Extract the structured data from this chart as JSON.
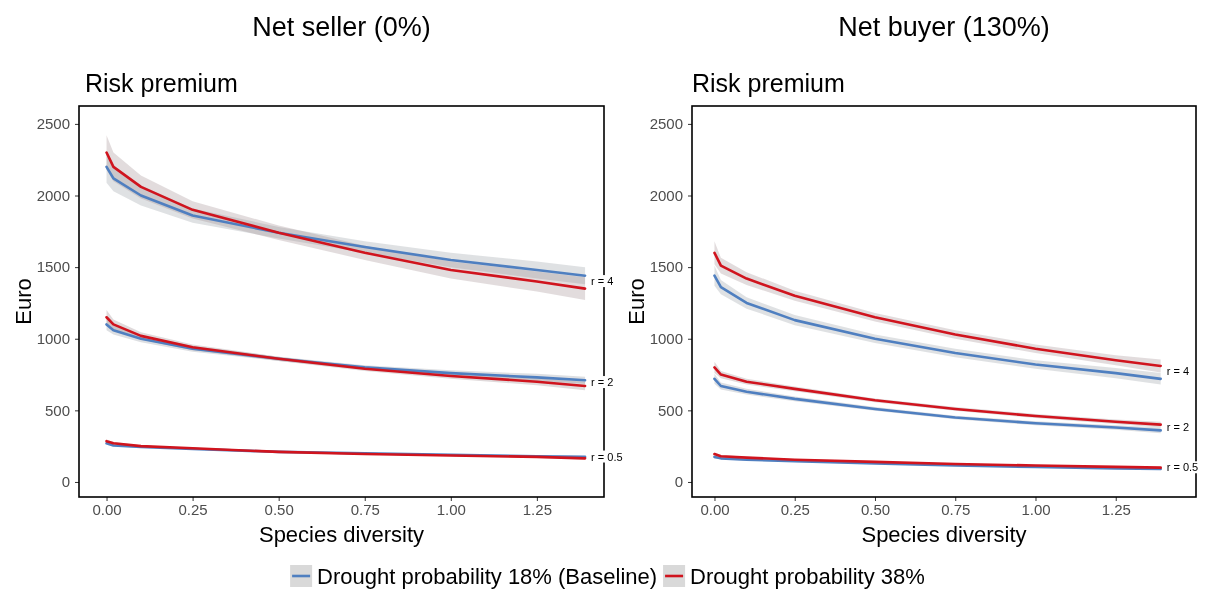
{
  "chart_data": [
    {
      "type": "line",
      "title": "Net seller (0%)",
      "subtitle": "Risk premium",
      "xlabel": "Species diversity",
      "ylabel": "Euro",
      "x": [
        0,
        0.02,
        0.1,
        0.25,
        0.5,
        0.75,
        1.0,
        1.25,
        1.39
      ],
      "xlim": [
        -0.08,
        1.445
      ],
      "xticks": [
        {
          "value": 0,
          "label": "0.00"
        },
        {
          "value": 0.25,
          "label": "0.25"
        },
        {
          "value": 0.5,
          "label": "0.50"
        },
        {
          "value": 0.75,
          "label": "0.75"
        },
        {
          "value": 1,
          "label": "1.00"
        },
        {
          "value": 1.25,
          "label": "1.25"
        }
      ],
      "ylim": [
        -105,
        2625
      ],
      "yticks": [
        0,
        500,
        1000,
        1500,
        2000,
        2500
      ],
      "grid": false,
      "legend": "bottom",
      "line_style": "solid",
      "marker": "none",
      "series": [
        {
          "name": "Drought probability 18% (Baseline)",
          "color": "#4f7fc0",
          "values": [
            2200,
            2120,
            2000,
            1860,
            1740,
            1640,
            1550,
            1480,
            1440
          ],
          "lower": [
            2090,
            2030,
            1930,
            1810,
            1700,
            1600,
            1500,
            1420,
            1380
          ],
          "upper": [
            2310,
            2210,
            2070,
            1910,
            1780,
            1680,
            1600,
            1540,
            1500
          ]
        },
        {
          "name": "Drought probability 38%",
          "color": "#d0141e",
          "values": [
            2300,
            2200,
            2060,
            1900,
            1740,
            1600,
            1480,
            1400,
            1350
          ],
          "lower": [
            2180,
            2100,
            1980,
            1840,
            1690,
            1550,
            1420,
            1330,
            1270
          ],
          "upper": [
            2420,
            2300,
            2140,
            1960,
            1790,
            1650,
            1540,
            1470,
            1430
          ]
        },
        {
          "color": "#4f7fc0",
          "values": [
            1100,
            1060,
            1000,
            930,
            860,
            800,
            760,
            730,
            710
          ],
          "lower": [
            1060,
            1030,
            975,
            910,
            845,
            785,
            740,
            705,
            685
          ],
          "upper": [
            1140,
            1090,
            1025,
            950,
            875,
            815,
            780,
            755,
            735
          ]
        },
        {
          "color": "#d0141e",
          "values": [
            1150,
            1100,
            1020,
            940,
            860,
            790,
            740,
            700,
            670
          ],
          "lower": [
            1100,
            1065,
            995,
            920,
            845,
            775,
            720,
            675,
            640
          ],
          "upper": [
            1200,
            1135,
            1045,
            960,
            875,
            805,
            760,
            725,
            700
          ]
        },
        {
          "color": "#4f7fc0",
          "values": [
            270,
            255,
            245,
            230,
            210,
            200,
            190,
            180,
            175
          ],
          "lower": [
            260,
            248,
            239,
            225,
            206,
            196,
            185,
            175,
            168
          ],
          "upper": [
            280,
            262,
            251,
            235,
            214,
            204,
            195,
            185,
            182
          ]
        },
        {
          "color": "#d0141e",
          "values": [
            285,
            270,
            250,
            235,
            210,
            195,
            185,
            175,
            165
          ],
          "lower": [
            273,
            261,
            243,
            229,
            205,
            190,
            179,
            168,
            157
          ],
          "upper": [
            297,
            279,
            257,
            241,
            215,
            200,
            191,
            182,
            173
          ]
        }
      ],
      "annotations": [
        "r = 4",
        "r = 2",
        "r = 0.5"
      ]
    },
    {
      "type": "line",
      "title": "Net buyer (130%)",
      "subtitle": "Risk premium",
      "xlabel": "Species diversity",
      "ylabel": "Euro",
      "x": [
        0,
        0.02,
        0.1,
        0.25,
        0.5,
        0.75,
        1.0,
        1.25,
        1.39
      ],
      "xlim": [
        -0.07,
        1.5
      ],
      "xticks": [
        {
          "value": 0,
          "label": "0.00"
        },
        {
          "value": 0.25,
          "label": "0.25"
        },
        {
          "value": 0.5,
          "label": "0.50"
        },
        {
          "value": 0.75,
          "label": "0.75"
        },
        {
          "value": 1,
          "label": "1.00"
        },
        {
          "value": 1.25,
          "label": "1.25"
        }
      ],
      "ylim": [
        -105,
        2625
      ],
      "yticks": [
        0,
        500,
        1000,
        1500,
        2000,
        2500
      ],
      "grid": false,
      "legend": "bottom",
      "line_style": "solid",
      "marker": "none",
      "series": [
        {
          "name": "Drought probability 18% (Baseline)",
          "color": "#4f7fc0",
          "values": [
            1440,
            1360,
            1250,
            1130,
            1000,
            900,
            820,
            760,
            720
          ],
          "lower": [
            1370,
            1310,
            1210,
            1095,
            970,
            870,
            790,
            725,
            680
          ],
          "upper": [
            1510,
            1410,
            1290,
            1165,
            1030,
            930,
            850,
            795,
            760
          ]
        },
        {
          "name": "Drought probability 38%",
          "color": "#d0141e",
          "values": [
            1600,
            1510,
            1420,
            1300,
            1150,
            1030,
            930,
            850,
            810
          ],
          "lower": [
            1520,
            1455,
            1375,
            1265,
            1120,
            1000,
            900,
            815,
            765
          ],
          "upper": [
            1680,
            1565,
            1465,
            1335,
            1180,
            1060,
            960,
            885,
            855
          ]
        },
        {
          "color": "#4f7fc0",
          "values": [
            720,
            670,
            630,
            580,
            510,
            450,
            410,
            380,
            360
          ],
          "lower": [
            685,
            645,
            610,
            563,
            497,
            437,
            396,
            364,
            340
          ],
          "upper": [
            755,
            695,
            650,
            597,
            523,
            463,
            424,
            396,
            380
          ]
        },
        {
          "color": "#d0141e",
          "values": [
            800,
            750,
            700,
            650,
            570,
            510,
            460,
            420,
            400
          ],
          "lower": [
            760,
            725,
            680,
            633,
            557,
            497,
            446,
            404,
            380
          ],
          "upper": [
            840,
            775,
            720,
            667,
            583,
            523,
            474,
            436,
            420
          ]
        },
        {
          "color": "#4f7fc0",
          "values": [
            175,
            165,
            155,
            145,
            130,
            115,
            105,
            95,
            90
          ],
          "lower": [
            165,
            157,
            149,
            140,
            126,
            111,
            100,
            90,
            84
          ],
          "upper": [
            185,
            173,
            161,
            150,
            134,
            119,
            110,
            100,
            96
          ]
        },
        {
          "color": "#d0141e",
          "values": [
            195,
            180,
            170,
            155,
            140,
            125,
            115,
            105,
            100
          ],
          "lower": [
            184,
            172,
            164,
            150,
            136,
            121,
            110,
            100,
            94
          ],
          "upper": [
            206,
            188,
            176,
            160,
            144,
            129,
            120,
            110,
            106
          ]
        }
      ],
      "annotations": [
        "r = 4",
        "r = 2",
        "r = 0.5"
      ]
    }
  ]
}
